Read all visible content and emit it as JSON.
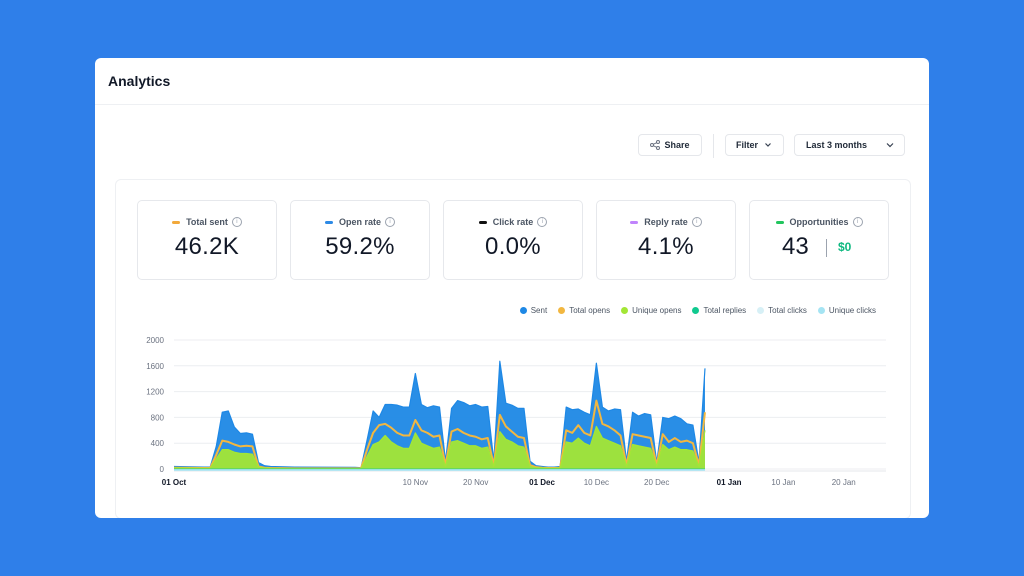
{
  "header": {
    "title": "Analytics"
  },
  "toolbar": {
    "share_label": "Share",
    "filter_label": "Filter",
    "range_label": "Last 3 months"
  },
  "stats": [
    {
      "label": "Total sent",
      "value": "46.2K",
      "color": "#f2a93b"
    },
    {
      "label": "Open rate",
      "value": "59.2%",
      "color": "#2d8ae5"
    },
    {
      "label": "Click rate",
      "value": "0.0%",
      "color": "#111111"
    },
    {
      "label": "Reply rate",
      "value": "4.1%",
      "color": "#c084fc"
    },
    {
      "label": "Opportunities",
      "value": "43",
      "extra": "$0",
      "color": "#22c55e"
    }
  ],
  "chart_data": {
    "type": "area",
    "legend_position": "top-right",
    "ylim": [
      0,
      2000
    ],
    "yticks": [
      "2000",
      "1600",
      "1200",
      "800",
      "400",
      "0"
    ],
    "xticks": [
      {
        "label": "01 Oct",
        "day": 0,
        "bold": true
      },
      {
        "label": "10 Nov",
        "day": 40,
        "bold": false
      },
      {
        "label": "20 Nov",
        "day": 50,
        "bold": false
      },
      {
        "label": "01 Dec",
        "day": 61,
        "bold": true
      },
      {
        "label": "10 Dec",
        "day": 70,
        "bold": false
      },
      {
        "label": "20 Dec",
        "day": 80,
        "bold": false
      },
      {
        "label": "01 Jan",
        "day": 92,
        "bold": true
      },
      {
        "label": "10 Jan",
        "day": 101,
        "bold": false
      },
      {
        "label": "20 Jan",
        "day": 111,
        "bold": false
      }
    ],
    "series": [
      {
        "name": "Sent",
        "color": "#1e88e5",
        "points": [
          [
            0,
            40
          ],
          [
            5,
            30
          ],
          [
            6,
            30
          ],
          [
            7,
            350
          ],
          [
            8,
            880
          ],
          [
            9,
            900
          ],
          [
            10,
            650
          ],
          [
            11,
            550
          ],
          [
            12,
            560
          ],
          [
            13,
            540
          ],
          [
            14,
            100
          ],
          [
            15,
            50
          ],
          [
            16,
            40
          ],
          [
            20,
            30
          ],
          [
            30,
            25
          ],
          [
            31,
            20
          ],
          [
            32,
            450
          ],
          [
            33,
            900
          ],
          [
            34,
            800
          ],
          [
            35,
            1000
          ],
          [
            36,
            1000
          ],
          [
            37,
            990
          ],
          [
            38,
            960
          ],
          [
            39,
            960
          ],
          [
            40,
            1480
          ],
          [
            41,
            1000
          ],
          [
            42,
            950
          ],
          [
            43,
            980
          ],
          [
            44,
            960
          ],
          [
            45,
            120
          ],
          [
            46,
            940
          ],
          [
            47,
            1060
          ],
          [
            48,
            1030
          ],
          [
            49,
            980
          ],
          [
            50,
            1000
          ],
          [
            51,
            960
          ],
          [
            52,
            970
          ],
          [
            53,
            120
          ],
          [
            54,
            1670
          ],
          [
            55,
            1020
          ],
          [
            56,
            990
          ],
          [
            57,
            940
          ],
          [
            58,
            940
          ],
          [
            59,
            120
          ],
          [
            60,
            50
          ],
          [
            61,
            40
          ],
          [
            62,
            30
          ],
          [
            63,
            30
          ],
          [
            64,
            40
          ],
          [
            65,
            960
          ],
          [
            66,
            920
          ],
          [
            67,
            930
          ],
          [
            68,
            880
          ],
          [
            69,
            840
          ],
          [
            70,
            1640
          ],
          [
            71,
            960
          ],
          [
            72,
            900
          ],
          [
            73,
            930
          ],
          [
            74,
            920
          ],
          [
            75,
            120
          ],
          [
            76,
            880
          ],
          [
            77,
            820
          ],
          [
            78,
            860
          ],
          [
            79,
            840
          ],
          [
            80,
            100
          ],
          [
            81,
            800
          ],
          [
            82,
            780
          ],
          [
            83,
            820
          ],
          [
            84,
            780
          ],
          [
            85,
            700
          ],
          [
            86,
            680
          ],
          [
            87,
            100
          ],
          [
            88,
            1560
          ]
        ]
      },
      {
        "name": "Total opens",
        "color": "#f2b740",
        "points": [
          [
            0,
            20
          ],
          [
            5,
            15
          ],
          [
            6,
            15
          ],
          [
            7,
            220
          ],
          [
            8,
            440
          ],
          [
            9,
            420
          ],
          [
            10,
            380
          ],
          [
            11,
            350
          ],
          [
            12,
            360
          ],
          [
            13,
            350
          ],
          [
            14,
            40
          ],
          [
            15,
            20
          ],
          [
            16,
            15
          ],
          [
            20,
            10
          ],
          [
            30,
            10
          ],
          [
            31,
            10
          ],
          [
            32,
            300
          ],
          [
            33,
            560
          ],
          [
            34,
            680
          ],
          [
            35,
            700
          ],
          [
            36,
            640
          ],
          [
            37,
            560
          ],
          [
            38,
            520
          ],
          [
            39,
            520
          ],
          [
            40,
            760
          ],
          [
            41,
            600
          ],
          [
            42,
            560
          ],
          [
            43,
            500
          ],
          [
            44,
            520
          ],
          [
            45,
            60
          ],
          [
            46,
            580
          ],
          [
            47,
            620
          ],
          [
            48,
            560
          ],
          [
            49,
            520
          ],
          [
            50,
            500
          ],
          [
            51,
            460
          ],
          [
            52,
            480
          ],
          [
            53,
            60
          ],
          [
            54,
            840
          ],
          [
            55,
            660
          ],
          [
            56,
            580
          ],
          [
            57,
            500
          ],
          [
            58,
            480
          ],
          [
            59,
            60
          ],
          [
            60,
            30
          ],
          [
            61,
            20
          ],
          [
            62,
            15
          ],
          [
            63,
            15
          ],
          [
            64,
            20
          ],
          [
            65,
            600
          ],
          [
            66,
            560
          ],
          [
            67,
            680
          ],
          [
            68,
            560
          ],
          [
            69,
            520
          ],
          [
            70,
            1060
          ],
          [
            71,
            700
          ],
          [
            72,
            660
          ],
          [
            73,
            600
          ],
          [
            74,
            520
          ],
          [
            75,
            60
          ],
          [
            76,
            540
          ],
          [
            77,
            520
          ],
          [
            78,
            500
          ],
          [
            79,
            480
          ],
          [
            80,
            60
          ],
          [
            81,
            540
          ],
          [
            82,
            420
          ],
          [
            83,
            480
          ],
          [
            84,
            420
          ],
          [
            85,
            440
          ],
          [
            86,
            400
          ],
          [
            87,
            60
          ],
          [
            88,
            880
          ]
        ]
      },
      {
        "name": "Unique opens",
        "color": "#a3e635",
        "points": [
          [
            0,
            15
          ],
          [
            5,
            10
          ],
          [
            6,
            10
          ],
          [
            7,
            160
          ],
          [
            8,
            300
          ],
          [
            9,
            300
          ],
          [
            10,
            260
          ],
          [
            11,
            240
          ],
          [
            12,
            240
          ],
          [
            13,
            230
          ],
          [
            14,
            30
          ],
          [
            15,
            15
          ],
          [
            16,
            10
          ],
          [
            20,
            8
          ],
          [
            30,
            8
          ],
          [
            31,
            8
          ],
          [
            32,
            200
          ],
          [
            33,
            380
          ],
          [
            34,
            420
          ],
          [
            35,
            520
          ],
          [
            36,
            420
          ],
          [
            37,
            360
          ],
          [
            38,
            320
          ],
          [
            39,
            320
          ],
          [
            40,
            560
          ],
          [
            41,
            400
          ],
          [
            42,
            360
          ],
          [
            43,
            320
          ],
          [
            44,
            340
          ],
          [
            45,
            40
          ],
          [
            46,
            420
          ],
          [
            47,
            440
          ],
          [
            48,
            400
          ],
          [
            49,
            360
          ],
          [
            50,
            360
          ],
          [
            51,
            320
          ],
          [
            52,
            340
          ],
          [
            53,
            40
          ],
          [
            54,
            580
          ],
          [
            55,
            460
          ],
          [
            56,
            420
          ],
          [
            57,
            360
          ],
          [
            58,
            340
          ],
          [
            59,
            40
          ],
          [
            60,
            20
          ],
          [
            61,
            15
          ],
          [
            62,
            10
          ],
          [
            63,
            10
          ],
          [
            64,
            15
          ],
          [
            65,
            420
          ],
          [
            66,
            400
          ],
          [
            67,
            480
          ],
          [
            68,
            400
          ],
          [
            69,
            360
          ],
          [
            70,
            660
          ],
          [
            71,
            480
          ],
          [
            72,
            440
          ],
          [
            73,
            400
          ],
          [
            74,
            360
          ],
          [
            75,
            40
          ],
          [
            76,
            380
          ],
          [
            77,
            360
          ],
          [
            78,
            340
          ],
          [
            79,
            320
          ],
          [
            80,
            40
          ],
          [
            81,
            380
          ],
          [
            82,
            300
          ],
          [
            83,
            340
          ],
          [
            84,
            300
          ],
          [
            85,
            300
          ],
          [
            86,
            280
          ],
          [
            87,
            40
          ],
          [
            88,
            600
          ]
        ]
      },
      {
        "name": "Total replies",
        "color": "#10c98f",
        "points": [
          [
            0,
            10
          ],
          [
            88,
            10
          ]
        ]
      },
      {
        "name": "Total clicks",
        "color": "#d7f0f6",
        "points": [
          [
            0,
            0
          ],
          [
            88,
            0
          ]
        ]
      },
      {
        "name": "Unique clicks",
        "color": "#a5e4f3",
        "points": [
          [
            0,
            0
          ],
          [
            88,
            0
          ]
        ]
      }
    ]
  }
}
